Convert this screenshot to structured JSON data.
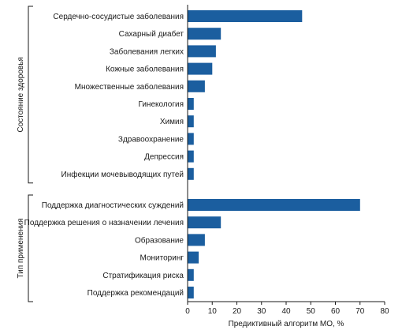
{
  "chart_data": {
    "type": "bar",
    "orientation": "horizontal",
    "colors": {
      "bar": "#1b5e9f",
      "text": "#1a1a1a"
    },
    "xlabel": "Предиктивный алгоритм МО, %",
    "xlim": [
      0,
      80
    ],
    "xticks": [
      0,
      10,
      20,
      30,
      40,
      50,
      60,
      70,
      80
    ],
    "grid": false,
    "groups": [
      {
        "name": "Состояние здоровья",
        "categories": [
          "Сердечно-сосудистые заболевания",
          "Сахарный диабет",
          "Заболевания легких",
          "Кожные заболевания",
          "Множественные заболевания",
          "Гинекология",
          "Химия",
          "Здравоохранение",
          "Депрессия",
          "Инфекции мочевыводящих путей"
        ],
        "values": [
          46.5,
          13.5,
          11.5,
          10,
          7,
          2.5,
          2.5,
          2.5,
          2.5,
          2.5
        ]
      },
      {
        "name": "Тип применения",
        "categories": [
          "Поддержка диагностических суждений",
          "Поддержка решения о назначении лечения",
          "Образование",
          "Мониторинг",
          "Стратификация риска",
          "Поддержка рекомендаций"
        ],
        "values": [
          70,
          13.5,
          7,
          4.5,
          2.5,
          2.5
        ]
      }
    ]
  }
}
